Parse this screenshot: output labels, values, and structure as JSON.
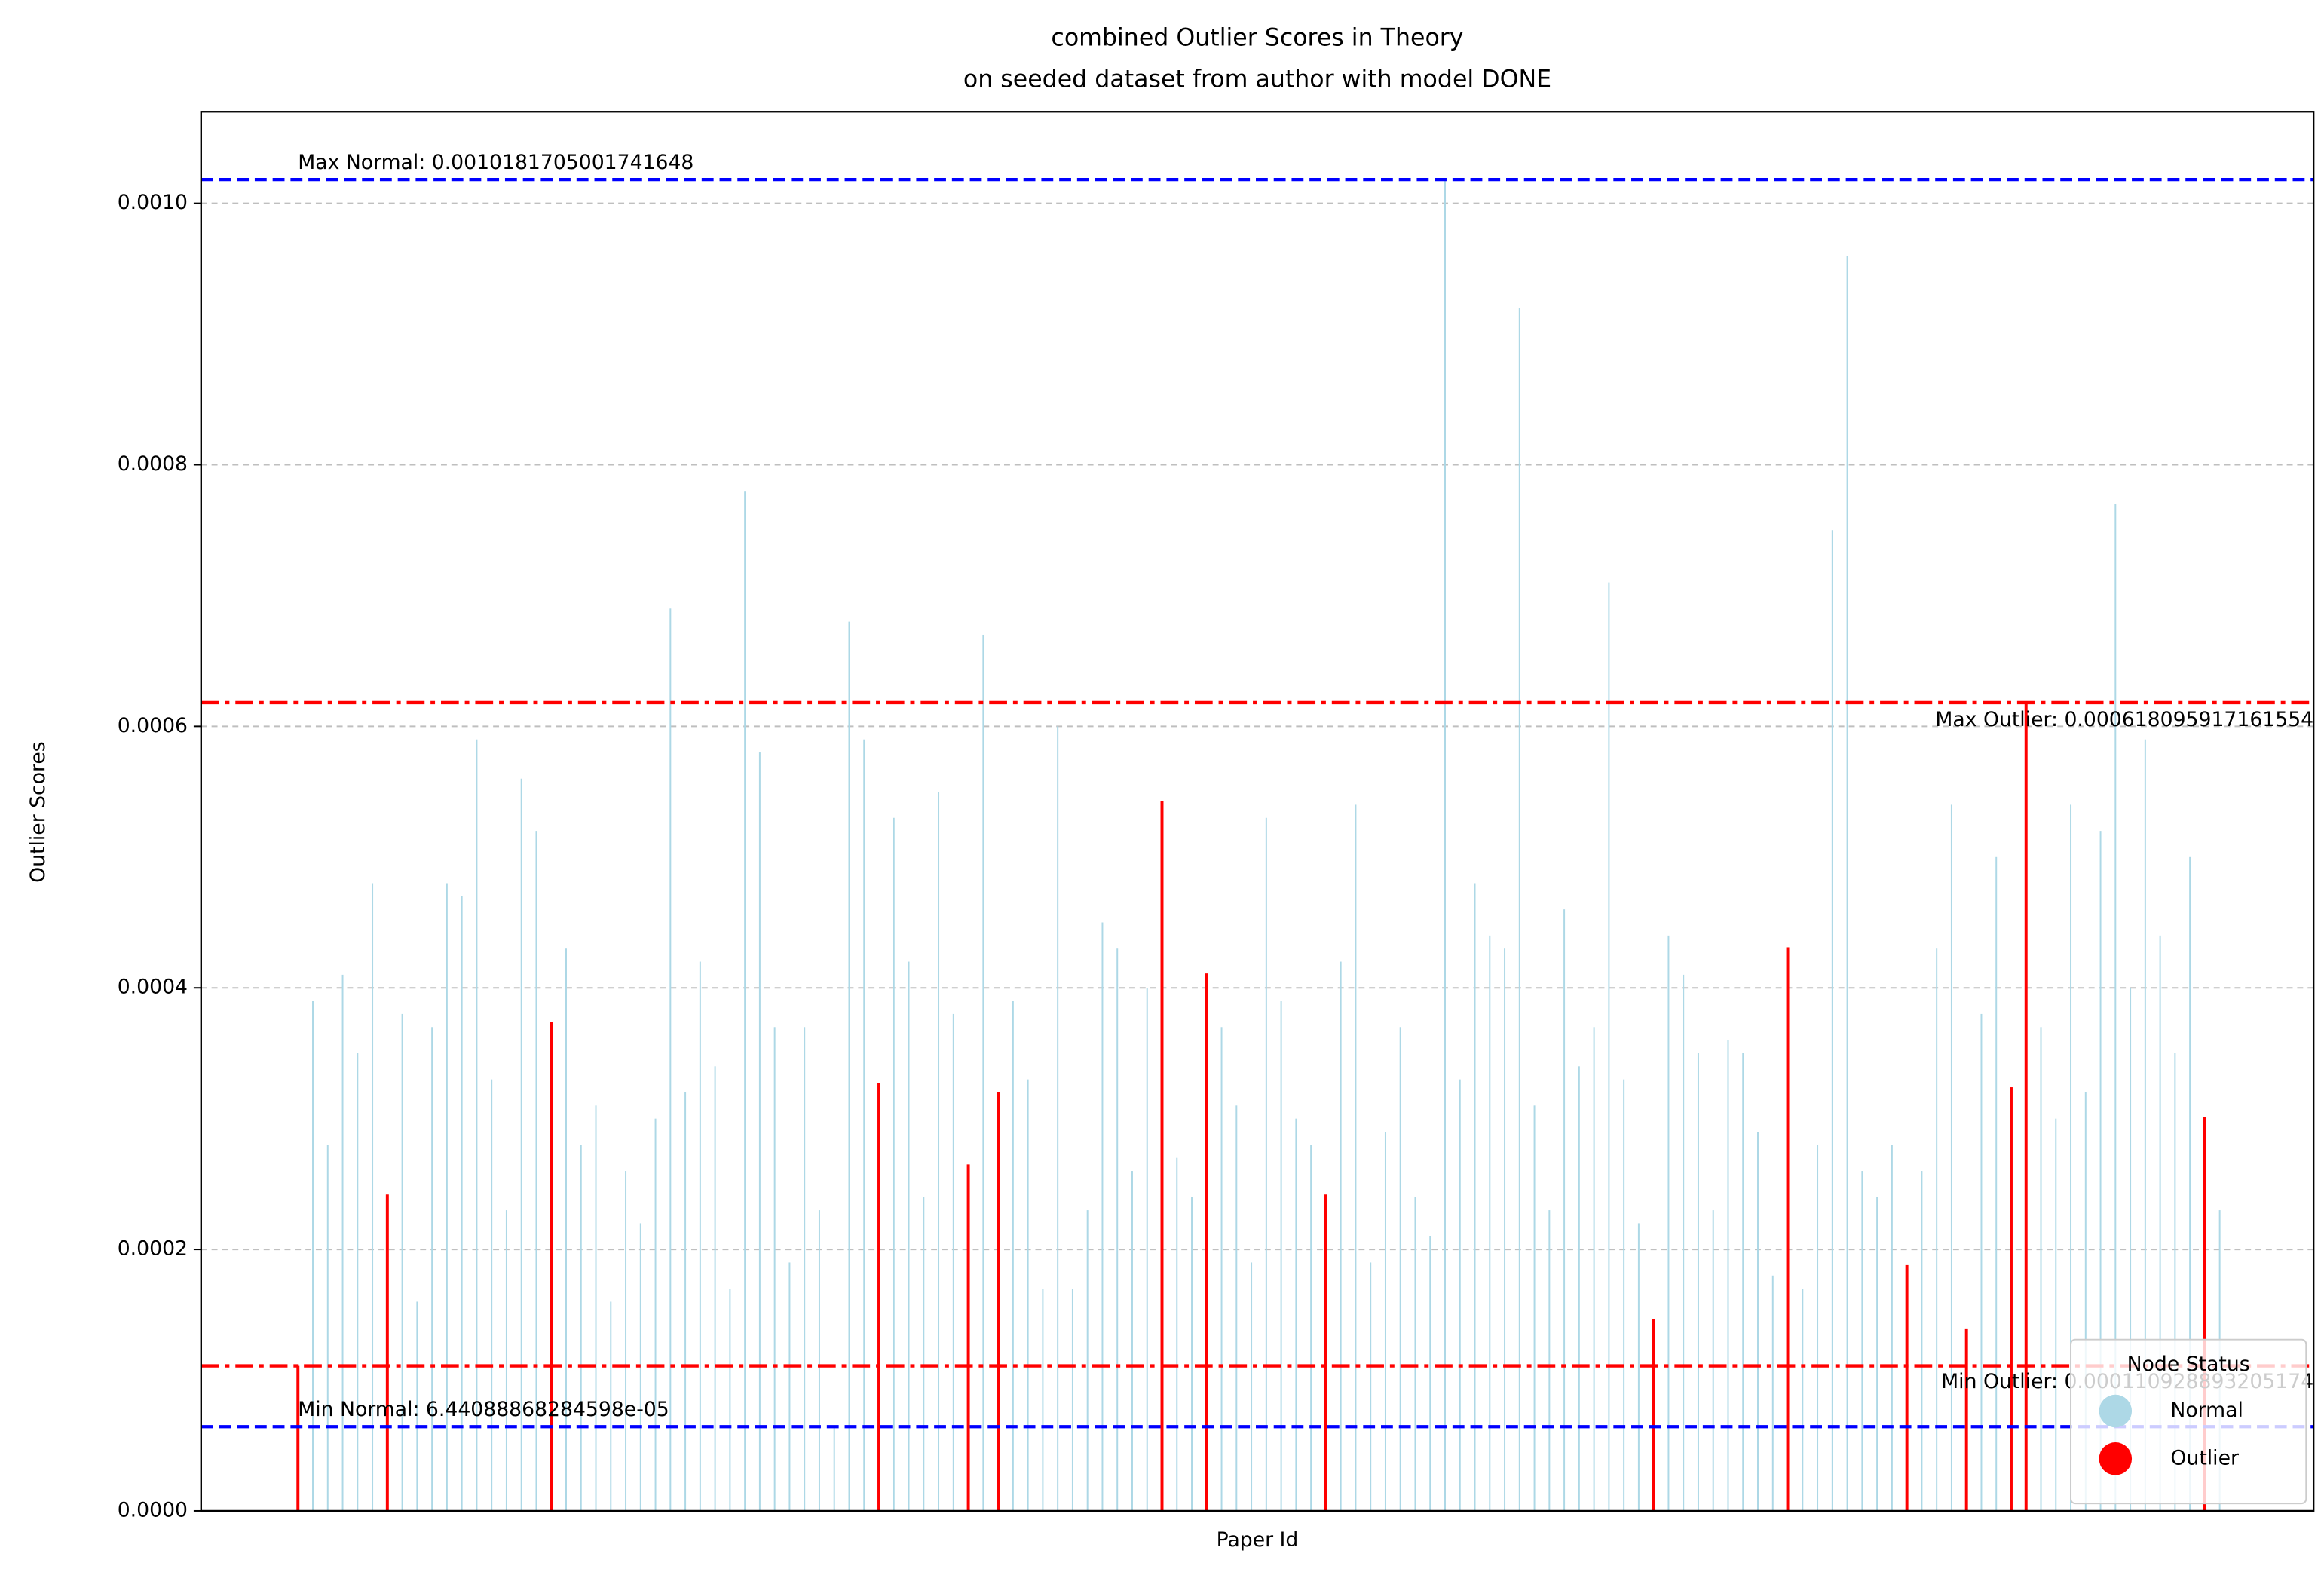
{
  "chart_data": {
    "type": "bar",
    "title": "combined Outlier Scores in Theory",
    "subtitle": "on seeded dataset from author with model DONE",
    "x_label": "Paper Id",
    "y_label": "Outlier Scores",
    "categories": [
      null,
      null,
      null,
      null,
      null,
      null,
      null,
      null,
      null,
      null,
      null,
      null,
      null,
      null,
      null,
      null,
      null,
      null,
      null,
      null,
      null,
      null,
      null,
      null,
      null,
      null,
      null,
      null,
      null,
      null,
      null,
      null,
      null,
      null,
      null,
      null,
      null,
      null,
      null,
      null,
      null,
      null,
      null,
      null,
      null,
      null,
      null,
      null,
      null,
      null,
      null,
      null,
      null,
      null,
      null,
      null,
      null,
      null,
      null,
      null,
      null,
      null,
      null,
      null,
      null,
      null,
      null,
      null,
      null,
      null,
      null,
      null,
      null,
      null,
      null,
      null,
      null,
      null,
      null,
      null,
      null,
      null,
      null,
      null,
      null,
      null,
      null,
      null,
      null,
      null,
      null,
      null,
      null,
      null,
      null,
      null,
      null,
      null,
      null,
      null,
      null,
      null,
      null,
      null,
      null,
      null,
      null,
      null,
      null,
      null,
      null,
      null,
      null,
      null,
      null,
      null,
      null,
      null,
      null,
      null,
      null,
      null,
      null,
      null,
      null,
      null,
      null,
      null,
      null,
      null
    ],
    "series": [
      {
        "name": "Normal",
        "color": "#add8e6",
        "values": [
          null,
          0.00039,
          0.00028,
          0.00041,
          0.00035,
          0.00048,
          null,
          0.00038,
          0.00016,
          0.00037,
          0.00048,
          0.00047,
          0.00059,
          0.00033,
          0.00023,
          0.00056,
          0.00052,
          null,
          0.00043,
          0.00028,
          0.00031,
          0.00016,
          0.00026,
          0.00022,
          0.0003,
          0.00069,
          0.00032,
          0.00042,
          0.00034,
          0.00017,
          0.00078,
          0.00058,
          0.00037,
          0.00019,
          0.00037,
          0.00023,
          6.44088868284598e-05,
          0.00068,
          0.00059,
          null,
          0.00053,
          0.00042,
          0.00024,
          0.00055,
          0.00038,
          null,
          0.00067,
          null,
          0.00039,
          0.00033,
          0.00017,
          0.0006,
          0.00017,
          0.00023,
          0.00045,
          0.00043,
          0.00026,
          0.0004,
          null,
          0.00027,
          0.00024,
          null,
          0.00037,
          0.00031,
          0.00019,
          0.00053,
          0.00039,
          0.0003,
          0.00028,
          null,
          0.00042,
          0.00054,
          0.00019,
          0.00029,
          0.00037,
          0.00024,
          0.00021,
          0.0010181705001741648,
          0.00033,
          0.00048,
          0.00044,
          0.00043,
          0.00092,
          0.00031,
          0.00023,
          0.00046,
          0.00034,
          0.00037,
          0.00071,
          0.00033,
          0.00022,
          null,
          0.00044,
          0.00041,
          0.00035,
          0.00023,
          0.00036,
          0.00035,
          0.00029,
          0.00018,
          null,
          0.00017,
          0.00028,
          0.00075,
          0.00096,
          0.00026,
          0.00024,
          0.00028,
          null,
          0.00026,
          0.00043,
          0.00054,
          null,
          0.00038,
          0.0005,
          null,
          null,
          0.00037,
          0.0003,
          0.00054,
          0.00032,
          0.00052,
          0.00077,
          0.0004,
          0.00059,
          0.00044,
          0.00035,
          0.0005,
          null,
          0.00023
        ]
      },
      {
        "name": "Outlier",
        "color": "#ff0000",
        "values": [
          0.000110928893205174,
          null,
          null,
          null,
          null,
          null,
          0.000242,
          null,
          null,
          null,
          null,
          null,
          null,
          null,
          null,
          null,
          null,
          0.000374,
          null,
          null,
          null,
          null,
          null,
          null,
          null,
          null,
          null,
          null,
          null,
          null,
          null,
          null,
          null,
          null,
          null,
          null,
          null,
          null,
          null,
          0.000327,
          null,
          null,
          null,
          null,
          null,
          0.000265,
          null,
          0.00032,
          null,
          null,
          null,
          null,
          null,
          null,
          null,
          null,
          null,
          null,
          0.000543,
          null,
          null,
          0.000411,
          null,
          null,
          null,
          null,
          null,
          null,
          null,
          0.000242,
          null,
          null,
          null,
          null,
          null,
          null,
          null,
          null,
          null,
          null,
          null,
          null,
          null,
          null,
          null,
          null,
          null,
          null,
          null,
          null,
          null,
          0.000147,
          null,
          null,
          null,
          null,
          null,
          null,
          null,
          null,
          0.000431,
          null,
          null,
          null,
          null,
          null,
          null,
          null,
          0.000188,
          null,
          null,
          null,
          0.000139,
          null,
          null,
          0.000324,
          0.000618095917161554,
          null,
          null,
          null,
          null,
          null,
          null,
          null,
          null,
          null,
          null,
          null,
          0.000301,
          null
        ]
      }
    ],
    "lines": [
      {
        "value": 0.0010181705001741648,
        "label": "Max Normal: 0.0010181705001741648",
        "color": "#0000ff",
        "style": "dashed"
      },
      {
        "value": 6.44088868284598e-05,
        "label": "Min Normal: 6.44088868284598e-05",
        "color": "#0000ff",
        "style": "dashed"
      },
      {
        "value": 0.000618095917161554,
        "label": "Max Outlier: 0.000618095917161554",
        "color": "#ff0000",
        "style": "dashdot"
      },
      {
        "value": 0.000110928893205174,
        "label": "Min Outlier: 0.000110928893205174",
        "color": "#ff0000",
        "style": "dashdot"
      }
    ],
    "ylim": [
      0,
      0.00107
    ],
    "yticks": [
      {
        "value": 0,
        "label": "0.0000"
      },
      {
        "value": 0.0002,
        "label": "0.0002"
      },
      {
        "value": 0.0004,
        "label": "0.0004"
      },
      {
        "value": 0.0006,
        "label": "0.0006"
      },
      {
        "value": 0.0008,
        "label": "0.0008"
      },
      {
        "value": 0.001,
        "label": "0.0010"
      }
    ],
    "grid": true,
    "legend": {
      "title": "Node Status",
      "position": "lower right"
    }
  }
}
